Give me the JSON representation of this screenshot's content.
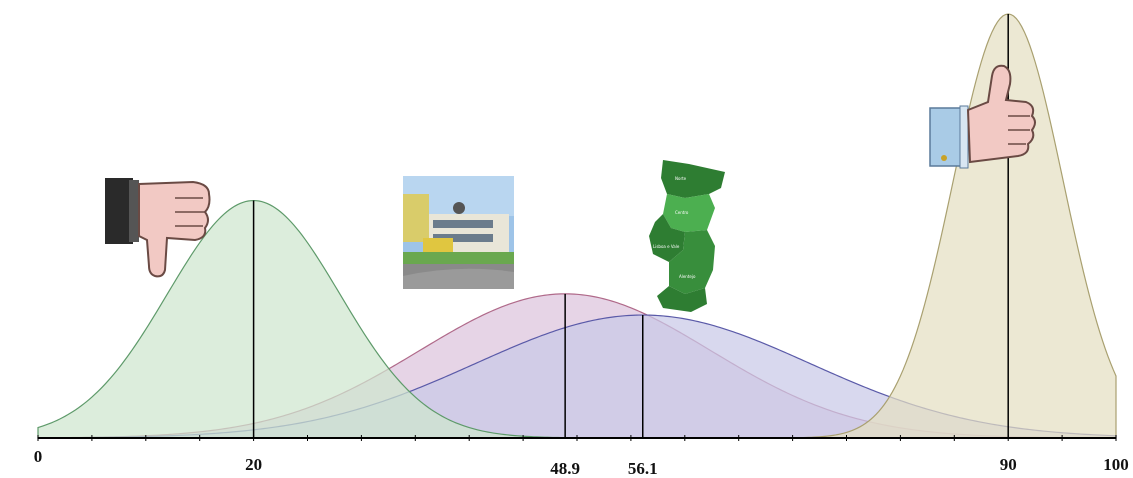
{
  "chart_data": {
    "type": "area",
    "xlim": [
      0,
      100
    ],
    "grid": false,
    "x_tick_labels": [
      "0",
      "20",
      "48.9",
      "56.1",
      "90",
      "100"
    ],
    "series": [
      {
        "mean": 20,
        "sd": 8.0,
        "peak": 0.56,
        "marker_label": "20",
        "fill": "#cfe6cf",
        "stroke": "#5e9a6a",
        "icon": "thumbs-down-icon"
      },
      {
        "mean": 48.9,
        "sd": 13.5,
        "peak": 0.34,
        "marker_label": "48.9",
        "fill": "#dcc4dc",
        "stroke": "#b06a8a",
        "icon": "school-building-photo"
      },
      {
        "mean": 56.1,
        "sd": 15.5,
        "peak": 0.29,
        "marker_label": "56.1",
        "fill": "#c9c9e8",
        "stroke": "#5a5aa8",
        "icon": "portugal-map-icon"
      },
      {
        "mean": 90,
        "sd": 5.1,
        "peak": 1.0,
        "marker_label": "90",
        "fill": "#e5dfc2",
        "stroke": "#a9a070",
        "icon": "thumbs-up-icon"
      }
    ]
  },
  "map_labels": [
    "Norte",
    "Centro",
    "Lisboa e Vale",
    "Alentejo"
  ],
  "colors": {
    "axis": "#000000",
    "map_dark": "#2e7d32",
    "map_light": "#4caf50"
  }
}
